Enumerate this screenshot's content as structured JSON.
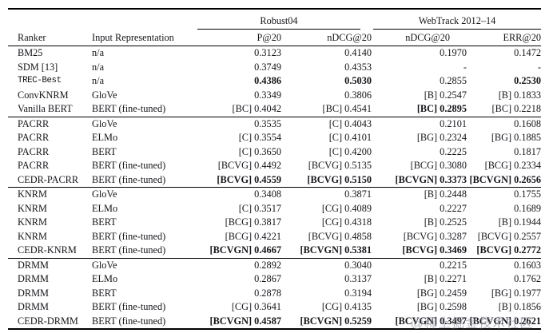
{
  "header": {
    "groups": [
      {
        "label": "Robust04"
      },
      {
        "label": "WebTrack 2012–14"
      }
    ],
    "columns": [
      "Ranker",
      "Input Representation",
      "P@20",
      "nDCG@20",
      "nDCG@20",
      "ERR@20"
    ]
  },
  "sections": [
    {
      "rows": [
        {
          "ranker": "BM25",
          "mono": false,
          "input": "n/a",
          "cells": [
            {
              "text": "0.3123",
              "bold": false
            },
            {
              "text": "0.4140",
              "bold": false
            },
            {
              "text": "0.1970",
              "bold": false
            },
            {
              "text": "0.1472",
              "bold": false
            }
          ]
        },
        {
          "ranker": "SDM [13]",
          "mono": false,
          "input": "n/a",
          "cells": [
            {
              "text": "0.3749",
              "bold": false
            },
            {
              "text": "0.4353",
              "bold": false
            },
            {
              "text": "-",
              "bold": false
            },
            {
              "text": "-",
              "bold": false
            }
          ]
        },
        {
          "ranker": "TREC-Best",
          "mono": true,
          "input": "n/a",
          "cells": [
            {
              "text": "0.4386",
              "bold": true
            },
            {
              "text": "0.5030",
              "bold": true
            },
            {
              "text": "0.2855",
              "bold": false
            },
            {
              "text": "0.2530",
              "bold": true
            }
          ]
        },
        {
          "ranker": "ConvKNRM",
          "mono": false,
          "input": "GloVe",
          "cells": [
            {
              "text": "0.3349",
              "bold": false
            },
            {
              "text": "0.3806",
              "bold": false
            },
            {
              "text": "[B] 0.2547",
              "bold": false
            },
            {
              "text": "[B] 0.1833",
              "bold": false
            }
          ]
        },
        {
          "ranker": "Vanilla BERT",
          "mono": false,
          "input": "BERT (fine-tuned)",
          "cells": [
            {
              "text": "[BC] 0.4042",
              "bold": false
            },
            {
              "text": "[BC] 0.4541",
              "bold": false
            },
            {
              "text": "[BC] 0.2895",
              "bold": true
            },
            {
              "text": "[BC] 0.2218",
              "bold": false
            }
          ]
        }
      ]
    },
    {
      "rows": [
        {
          "ranker": "PACRR",
          "mono": false,
          "input": "GloVe",
          "cells": [
            {
              "text": "0.3535",
              "bold": false
            },
            {
              "text": "[C] 0.4043",
              "bold": false
            },
            {
              "text": "0.2101",
              "bold": false
            },
            {
              "text": "0.1608",
              "bold": false
            }
          ]
        },
        {
          "ranker": "PACRR",
          "mono": false,
          "input": "ELMo",
          "cells": [
            {
              "text": "[C] 0.3554",
              "bold": false
            },
            {
              "text": "[C] 0.4101",
              "bold": false
            },
            {
              "text": "[BG] 0.2324",
              "bold": false
            },
            {
              "text": "[BG] 0.1885",
              "bold": false
            }
          ]
        },
        {
          "ranker": "PACRR",
          "mono": false,
          "input": "BERT",
          "cells": [
            {
              "text": "[C] 0.3650",
              "bold": false
            },
            {
              "text": "[C] 0.4200",
              "bold": false
            },
            {
              "text": "0.2225",
              "bold": false
            },
            {
              "text": "0.1817",
              "bold": false
            }
          ]
        },
        {
          "ranker": "PACRR",
          "mono": false,
          "input": "BERT (fine-tuned)",
          "cells": [
            {
              "text": "[BCVG] 0.4492",
              "bold": false
            },
            {
              "text": "[BCVG] 0.5135",
              "bold": false
            },
            {
              "text": "[BCG] 0.3080",
              "bold": false
            },
            {
              "text": "[BCG] 0.2334",
              "bold": false
            }
          ]
        },
        {
          "ranker": "CEDR-PACRR",
          "mono": false,
          "input": "BERT (fine-tuned)",
          "cells": [
            {
              "text": "[BCVG] 0.4559",
              "bold": true
            },
            {
              "text": "[BCVG] 0.5150",
              "bold": true
            },
            {
              "text": "[BCVGN] 0.3373",
              "bold": true
            },
            {
              "text": "[BCVGN] 0.2656",
              "bold": true
            }
          ]
        }
      ]
    },
    {
      "rows": [
        {
          "ranker": "KNRM",
          "mono": false,
          "input": "GloVe",
          "cells": [
            {
              "text": "0.3408",
              "bold": false
            },
            {
              "text": "0.3871",
              "bold": false
            },
            {
              "text": "[B] 0.2448",
              "bold": false
            },
            {
              "text": "0.1755",
              "bold": false
            }
          ]
        },
        {
          "ranker": "KNRM",
          "mono": false,
          "input": "ELMo",
          "cells": [
            {
              "text": "[C] 0.3517",
              "bold": false
            },
            {
              "text": "[CG] 0.4089",
              "bold": false
            },
            {
              "text": "0.2227",
              "bold": false
            },
            {
              "text": "0.1689",
              "bold": false
            }
          ]
        },
        {
          "ranker": "KNRM",
          "mono": false,
          "input": "BERT",
          "cells": [
            {
              "text": "[BCG] 0.3817",
              "bold": false
            },
            {
              "text": "[CG] 0.4318",
              "bold": false
            },
            {
              "text": "[B] 0.2525",
              "bold": false
            },
            {
              "text": "[B] 0.1944",
              "bold": false
            }
          ]
        },
        {
          "ranker": "KNRM",
          "mono": false,
          "input": "BERT (fine-tuned)",
          "cells": [
            {
              "text": "[BCG] 0.4221",
              "bold": false
            },
            {
              "text": "[BCVG] 0.4858",
              "bold": false
            },
            {
              "text": "[BCVG] 0.3287",
              "bold": false
            },
            {
              "text": "[BCVG] 0.2557",
              "bold": false
            }
          ]
        },
        {
          "ranker": "CEDR-KNRM",
          "mono": false,
          "input": "BERT (fine-tuned)",
          "cells": [
            {
              "text": "[BCVGN] 0.4667",
              "bold": true
            },
            {
              "text": "[BCVGN] 0.5381",
              "bold": true
            },
            {
              "text": "[BCVG] 0.3469",
              "bold": true
            },
            {
              "text": "[BCVG] 0.2772",
              "bold": true
            }
          ]
        }
      ]
    },
    {
      "rows": [
        {
          "ranker": "DRMM",
          "mono": false,
          "input": "GloVe",
          "cells": [
            {
              "text": "0.2892",
              "bold": false
            },
            {
              "text": "0.3040",
              "bold": false
            },
            {
              "text": "0.2215",
              "bold": false
            },
            {
              "text": "0.1603",
              "bold": false
            }
          ]
        },
        {
          "ranker": "DRMM",
          "mono": false,
          "input": "ELMo",
          "cells": [
            {
              "text": "0.2867",
              "bold": false
            },
            {
              "text": "0.3137",
              "bold": false
            },
            {
              "text": "[B] 0.2271",
              "bold": false
            },
            {
              "text": "0.1762",
              "bold": false
            }
          ]
        },
        {
          "ranker": "DRMM",
          "mono": false,
          "input": "BERT",
          "cells": [
            {
              "text": "0.2878",
              "bold": false
            },
            {
              "text": "0.3194",
              "bold": false
            },
            {
              "text": "[BG] 0.2459",
              "bold": false
            },
            {
              "text": "[BG] 0.1977",
              "bold": false
            }
          ]
        },
        {
          "ranker": "DRMM",
          "mono": false,
          "input": "BERT (fine-tuned)",
          "cells": [
            {
              "text": "[CG] 0.3641",
              "bold": false
            },
            {
              "text": "[CG] 0.4135",
              "bold": false
            },
            {
              "text": "[BG] 0.2598",
              "bold": false
            },
            {
              "text": "[B] 0.1856",
              "bold": false
            }
          ]
        },
        {
          "ranker": "CEDR-DRMM",
          "mono": false,
          "input": "BERT (fine-tuned)",
          "cells": [
            {
              "text": "[BCVGN] 0.4587",
              "bold": true
            },
            {
              "text": "[BCVGN] 0.5259",
              "bold": true
            },
            {
              "text": "[BCVGN] 0.3497",
              "bold": true
            },
            {
              "text": "[BCVGN] 0.2621",
              "bold": true
            }
          ]
        }
      ]
    }
  ],
  "watermark": {
    "text": "@稀土掘金技术社区"
  }
}
